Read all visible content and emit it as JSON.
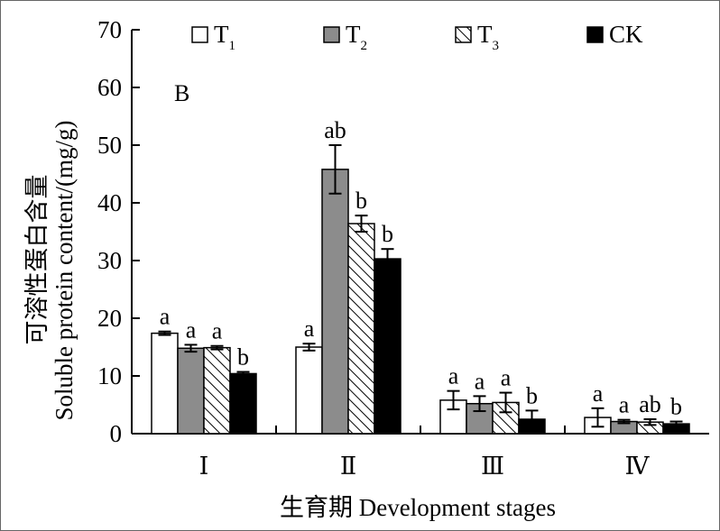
{
  "chart_data": {
    "type": "bar",
    "panel_label": "B",
    "categories": [
      "Ⅰ",
      "Ⅱ",
      "Ⅲ",
      "Ⅳ"
    ],
    "xlabel": "生育期 Development stages",
    "ylabel_cn": "可溶性蛋白含量",
    "ylabel_en": "Soluble protein content/(mg/g)",
    "ylim": [
      0,
      70
    ],
    "yticks": [
      0,
      10,
      20,
      30,
      40,
      50,
      60,
      70
    ],
    "legend_position": "top",
    "series": [
      {
        "name": "T",
        "sub": "1",
        "fill": "white",
        "color": "#ffffff",
        "values": [
          17.4,
          15.0,
          5.8,
          2.8
        ],
        "errors": [
          0.3,
          0.6,
          1.6,
          1.6
        ],
        "sig": [
          "a",
          "a",
          "a",
          "a"
        ]
      },
      {
        "name": "T",
        "sub": "2",
        "fill": "gray",
        "color": "#8c8c8c",
        "values": [
          14.8,
          45.8,
          5.2,
          2.1
        ],
        "errors": [
          0.6,
          4.2,
          1.3,
          0.3
        ],
        "sig": [
          "a",
          "ab",
          "a",
          "a"
        ]
      },
      {
        "name": "T",
        "sub": "3",
        "fill": "hatch",
        "color": "#ffffff",
        "values": [
          14.9,
          36.4,
          5.4,
          2.0
        ],
        "errors": [
          0.3,
          1.4,
          1.7,
          0.5
        ],
        "sig": [
          "a",
          "b",
          "a",
          "ab"
        ]
      },
      {
        "name": "CK",
        "sub": "",
        "fill": "black",
        "color": "#000000",
        "values": [
          10.4,
          30.3,
          2.5,
          1.7
        ],
        "errors": [
          0.3,
          1.7,
          1.5,
          0.4
        ],
        "sig": [
          "b",
          "b",
          "b",
          "b"
        ]
      }
    ]
  }
}
